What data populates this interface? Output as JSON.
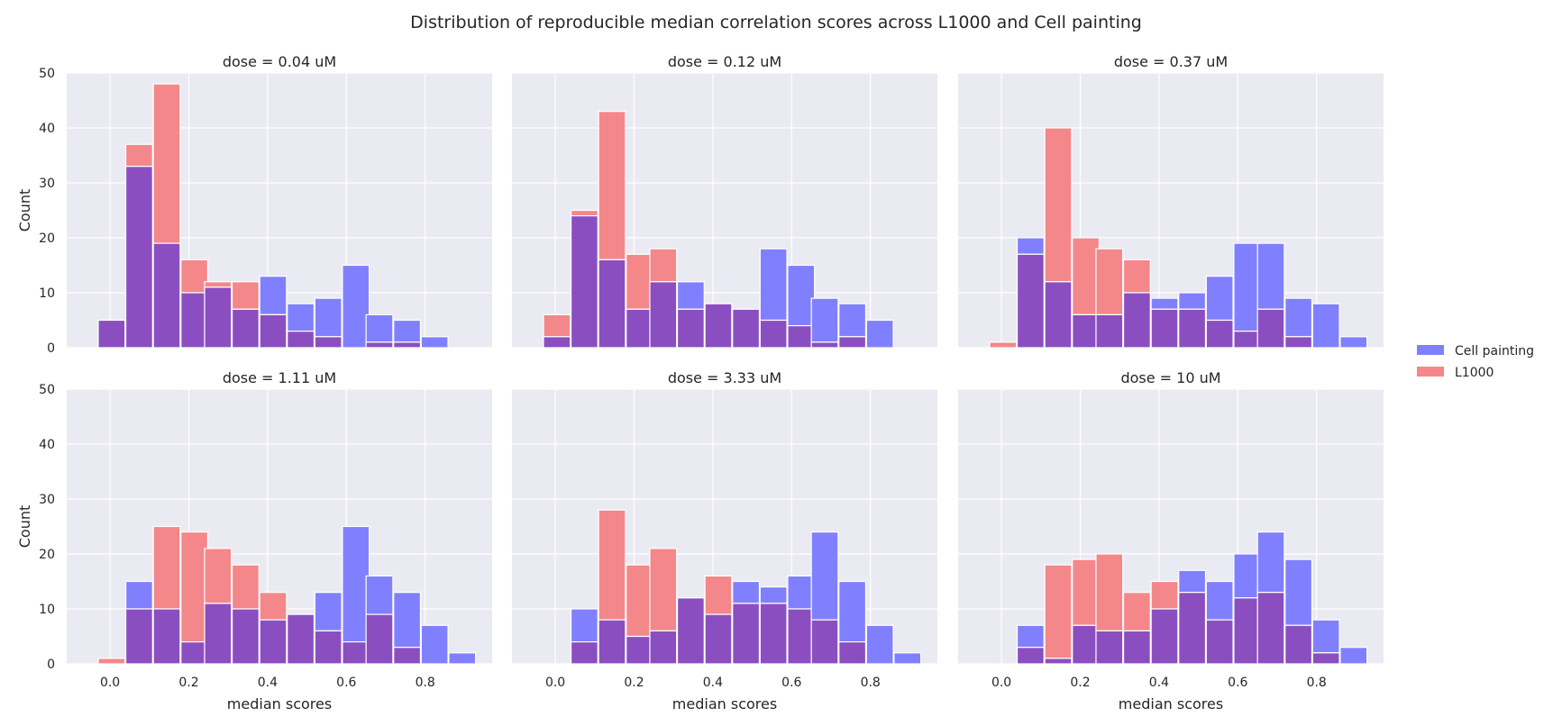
{
  "chart_data": {
    "type": "bar",
    "title": "Distribution of reproducible median correlation scores across L1000 and Cell painting",
    "xlabel": "median scores",
    "ylabel": "Count",
    "xlim": [
      -0.11,
      0.97
    ],
    "ylim": [
      0,
      50
    ],
    "x_ticks": [
      "0.0",
      "0.2",
      "0.4",
      "0.6",
      "0.8"
    ],
    "y_ticks": [
      "0",
      "10",
      "20",
      "30",
      "40",
      "50"
    ],
    "bin_width": 0.068,
    "grid": true,
    "legend_position": "right",
    "series": [
      {
        "name": "Cell painting",
        "color": "#8080ff"
      },
      {
        "name": "L1000",
        "color": "#f4878a"
      }
    ],
    "overlap_color": "#8b4ec0",
    "panels": [
      {
        "title": "dose = 0.04 uM",
        "cell_painting": [
          {
            "x": -0.03,
            "y": 5
          },
          {
            "x": 0.04,
            "y": 33
          },
          {
            "x": 0.11,
            "y": 19
          },
          {
            "x": 0.18,
            "y": 10
          },
          {
            "x": 0.24,
            "y": 11
          },
          {
            "x": 0.31,
            "y": 7
          },
          {
            "x": 0.38,
            "y": 13
          },
          {
            "x": 0.45,
            "y": 8
          },
          {
            "x": 0.52,
            "y": 9
          },
          {
            "x": 0.59,
            "y": 15
          },
          {
            "x": 0.65,
            "y": 6
          },
          {
            "x": 0.72,
            "y": 5
          },
          {
            "x": 0.79,
            "y": 2
          }
        ],
        "l1000": [
          {
            "x": -0.03,
            "y": 5
          },
          {
            "x": 0.04,
            "y": 37
          },
          {
            "x": 0.11,
            "y": 48
          },
          {
            "x": 0.18,
            "y": 16
          },
          {
            "x": 0.24,
            "y": 12
          },
          {
            "x": 0.31,
            "y": 12
          },
          {
            "x": 0.38,
            "y": 6
          },
          {
            "x": 0.45,
            "y": 3
          },
          {
            "x": 0.52,
            "y": 2
          },
          {
            "x": 0.65,
            "y": 1
          },
          {
            "x": 0.72,
            "y": 1
          }
        ]
      },
      {
        "title": "dose = 0.12 uM",
        "cell_painting": [
          {
            "x": -0.03,
            "y": 2
          },
          {
            "x": 0.04,
            "y": 24
          },
          {
            "x": 0.11,
            "y": 16
          },
          {
            "x": 0.18,
            "y": 7
          },
          {
            "x": 0.24,
            "y": 12
          },
          {
            "x": 0.31,
            "y": 12
          },
          {
            "x": 0.38,
            "y": 8
          },
          {
            "x": 0.45,
            "y": 7
          },
          {
            "x": 0.52,
            "y": 18
          },
          {
            "x": 0.59,
            "y": 15
          },
          {
            "x": 0.65,
            "y": 9
          },
          {
            "x": 0.72,
            "y": 8
          },
          {
            "x": 0.79,
            "y": 5
          }
        ],
        "l1000": [
          {
            "x": -0.03,
            "y": 6
          },
          {
            "x": 0.04,
            "y": 25
          },
          {
            "x": 0.11,
            "y": 43
          },
          {
            "x": 0.18,
            "y": 17
          },
          {
            "x": 0.24,
            "y": 18
          },
          {
            "x": 0.31,
            "y": 7
          },
          {
            "x": 0.38,
            "y": 8
          },
          {
            "x": 0.45,
            "y": 7
          },
          {
            "x": 0.52,
            "y": 5
          },
          {
            "x": 0.59,
            "y": 4
          },
          {
            "x": 0.65,
            "y": 1
          },
          {
            "x": 0.72,
            "y": 2
          }
        ]
      },
      {
        "title": "dose = 0.37 uM",
        "cell_painting": [
          {
            "x": 0.04,
            "y": 20
          },
          {
            "x": 0.11,
            "y": 12
          },
          {
            "x": 0.18,
            "y": 6
          },
          {
            "x": 0.24,
            "y": 6
          },
          {
            "x": 0.31,
            "y": 10
          },
          {
            "x": 0.38,
            "y": 9
          },
          {
            "x": 0.45,
            "y": 10
          },
          {
            "x": 0.52,
            "y": 13
          },
          {
            "x": 0.59,
            "y": 19
          },
          {
            "x": 0.65,
            "y": 19
          },
          {
            "x": 0.72,
            "y": 9
          },
          {
            "x": 0.79,
            "y": 8
          },
          {
            "x": 0.86,
            "y": 2
          }
        ],
        "l1000": [
          {
            "x": -0.03,
            "y": 1
          },
          {
            "x": 0.04,
            "y": 17
          },
          {
            "x": 0.11,
            "y": 40
          },
          {
            "x": 0.18,
            "y": 20
          },
          {
            "x": 0.24,
            "y": 18
          },
          {
            "x": 0.31,
            "y": 16
          },
          {
            "x": 0.38,
            "y": 7
          },
          {
            "x": 0.45,
            "y": 7
          },
          {
            "x": 0.52,
            "y": 5
          },
          {
            "x": 0.59,
            "y": 3
          },
          {
            "x": 0.65,
            "y": 7
          },
          {
            "x": 0.72,
            "y": 2
          }
        ]
      },
      {
        "title": "dose = 1.11 uM",
        "cell_painting": [
          {
            "x": 0.04,
            "y": 15
          },
          {
            "x": 0.11,
            "y": 10
          },
          {
            "x": 0.18,
            "y": 4
          },
          {
            "x": 0.24,
            "y": 11
          },
          {
            "x": 0.31,
            "y": 10
          },
          {
            "x": 0.38,
            "y": 8
          },
          {
            "x": 0.45,
            "y": 9
          },
          {
            "x": 0.52,
            "y": 13
          },
          {
            "x": 0.59,
            "y": 25
          },
          {
            "x": 0.65,
            "y": 16
          },
          {
            "x": 0.72,
            "y": 13
          },
          {
            "x": 0.79,
            "y": 7
          },
          {
            "x": 0.86,
            "y": 2
          }
        ],
        "l1000": [
          {
            "x": -0.03,
            "y": 1
          },
          {
            "x": 0.04,
            "y": 10
          },
          {
            "x": 0.11,
            "y": 25
          },
          {
            "x": 0.18,
            "y": 24
          },
          {
            "x": 0.24,
            "y": 21
          },
          {
            "x": 0.31,
            "y": 18
          },
          {
            "x": 0.38,
            "y": 13
          },
          {
            "x": 0.45,
            "y": 9
          },
          {
            "x": 0.52,
            "y": 6
          },
          {
            "x": 0.59,
            "y": 4
          },
          {
            "x": 0.65,
            "y": 9
          },
          {
            "x": 0.72,
            "y": 3
          }
        ]
      },
      {
        "title": "dose = 3.33 uM",
        "cell_painting": [
          {
            "x": 0.04,
            "y": 10
          },
          {
            "x": 0.11,
            "y": 8
          },
          {
            "x": 0.18,
            "y": 5
          },
          {
            "x": 0.24,
            "y": 6
          },
          {
            "x": 0.31,
            "y": 12
          },
          {
            "x": 0.38,
            "y": 9
          },
          {
            "x": 0.45,
            "y": 15
          },
          {
            "x": 0.52,
            "y": 14
          },
          {
            "x": 0.59,
            "y": 16
          },
          {
            "x": 0.65,
            "y": 24
          },
          {
            "x": 0.72,
            "y": 15
          },
          {
            "x": 0.79,
            "y": 7
          },
          {
            "x": 0.86,
            "y": 2
          }
        ],
        "l1000": [
          {
            "x": 0.04,
            "y": 4
          },
          {
            "x": 0.11,
            "y": 28
          },
          {
            "x": 0.18,
            "y": 18
          },
          {
            "x": 0.24,
            "y": 21
          },
          {
            "x": 0.31,
            "y": 12
          },
          {
            "x": 0.38,
            "y": 16
          },
          {
            "x": 0.45,
            "y": 11
          },
          {
            "x": 0.52,
            "y": 11
          },
          {
            "x": 0.59,
            "y": 10
          },
          {
            "x": 0.65,
            "y": 8
          },
          {
            "x": 0.72,
            "y": 4
          }
        ]
      },
      {
        "title": "dose = 10 uM",
        "cell_painting": [
          {
            "x": 0.04,
            "y": 7
          },
          {
            "x": 0.11,
            "y": 1
          },
          {
            "x": 0.18,
            "y": 7
          },
          {
            "x": 0.24,
            "y": 6
          },
          {
            "x": 0.31,
            "y": 6
          },
          {
            "x": 0.38,
            "y": 10
          },
          {
            "x": 0.45,
            "y": 17
          },
          {
            "x": 0.52,
            "y": 15
          },
          {
            "x": 0.59,
            "y": 20
          },
          {
            "x": 0.65,
            "y": 24
          },
          {
            "x": 0.72,
            "y": 19
          },
          {
            "x": 0.79,
            "y": 8
          },
          {
            "x": 0.86,
            "y": 3
          }
        ],
        "l1000": [
          {
            "x": 0.04,
            "y": 3
          },
          {
            "x": 0.11,
            "y": 18
          },
          {
            "x": 0.18,
            "y": 19
          },
          {
            "x": 0.24,
            "y": 20
          },
          {
            "x": 0.31,
            "y": 13
          },
          {
            "x": 0.38,
            "y": 15
          },
          {
            "x": 0.45,
            "y": 13
          },
          {
            "x": 0.52,
            "y": 8
          },
          {
            "x": 0.59,
            "y": 12
          },
          {
            "x": 0.65,
            "y": 13
          },
          {
            "x": 0.72,
            "y": 7
          },
          {
            "x": 0.79,
            "y": 2
          }
        ]
      }
    ]
  }
}
